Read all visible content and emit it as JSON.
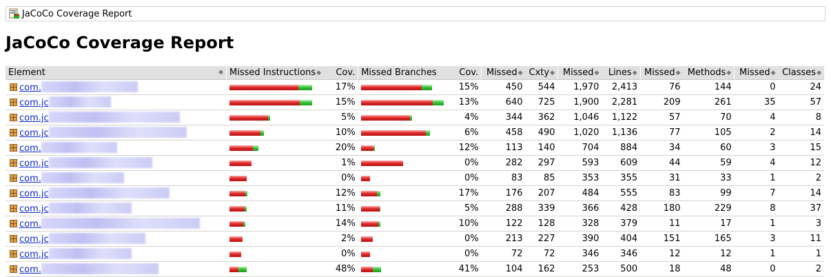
{
  "breadcrumb": {
    "title": "JaCoCo Coverage Report"
  },
  "page": {
    "title": "JaCoCo Coverage Report"
  },
  "table": {
    "headers": [
      "Element",
      "Missed Instructions",
      "Cov.",
      "Missed Branches",
      "Cov.",
      "Missed",
      "Cxty",
      "Missed",
      "Lines",
      "Missed",
      "Methods",
      "Missed",
      "Classes"
    ],
    "rows": [
      {
        "name": "com.",
        "instr_bar": {
          "missed_fraction": 0.83,
          "covered_fraction": 0.17
        },
        "instr_cov": "17%",
        "branch_bar": {
          "missed_fraction": 0.85,
          "covered_fraction": 0.15
        },
        "branch_cov": "15%",
        "missed_cxty": "450",
        "cxty": "544",
        "missed_lines": "1,970",
        "lines": "2,413",
        "missed_methods": "76",
        "methods": "144",
        "missed_classes": "0",
        "classes": "24"
      },
      {
        "name": "com.jc",
        "instr_bar": {
          "missed_fraction": 0.85,
          "covered_fraction": 0.15
        },
        "instr_cov": "15%",
        "branch_bar": {
          "missed_fraction": 0.87,
          "covered_fraction": 0.13
        },
        "branch_cov": "13%",
        "missed_cxty": "640",
        "cxty": "725",
        "missed_lines": "1,900",
        "lines": "2,281",
        "missed_methods": "209",
        "methods": "261",
        "missed_classes": "35",
        "classes": "57"
      },
      {
        "name": "com.jc",
        "instr_bar": {
          "missed_fraction": 0.95,
          "covered_fraction": 0.05
        },
        "instr_cov": "5%",
        "branch_bar": {
          "missed_fraction": 0.96,
          "covered_fraction": 0.04
        },
        "branch_cov": "4%",
        "missed_cxty": "344",
        "cxty": "362",
        "missed_lines": "1,046",
        "lines": "1,122",
        "missed_methods": "57",
        "methods": "70",
        "missed_classes": "4",
        "classes": "8"
      },
      {
        "name": "com.jc",
        "instr_bar": {
          "missed_fraction": 0.9,
          "covered_fraction": 0.1
        },
        "instr_cov": "10%",
        "branch_bar": {
          "missed_fraction": 0.94,
          "covered_fraction": 0.06
        },
        "branch_cov": "6%",
        "missed_cxty": "458",
        "cxty": "490",
        "missed_lines": "1,020",
        "lines": "1,136",
        "missed_methods": "77",
        "methods": "105",
        "missed_classes": "2",
        "classes": "14"
      },
      {
        "name": "com.",
        "instr_bar": {
          "missed_fraction": 0.8,
          "covered_fraction": 0.2
        },
        "instr_cov": "20%",
        "branch_bar": {
          "missed_fraction": 0.88,
          "covered_fraction": 0.12
        },
        "branch_cov": "12%",
        "missed_cxty": "113",
        "cxty": "140",
        "missed_lines": "704",
        "lines": "884",
        "missed_methods": "34",
        "methods": "60",
        "missed_classes": "3",
        "classes": "15"
      },
      {
        "name": "com.jc",
        "instr_bar": {
          "missed_fraction": 0.99,
          "covered_fraction": 0.01
        },
        "instr_cov": "1%",
        "branch_bar": {
          "missed_fraction": 1.0,
          "covered_fraction": 0.0
        },
        "branch_cov": "0%",
        "missed_cxty": "282",
        "cxty": "297",
        "missed_lines": "593",
        "lines": "609",
        "missed_methods": "44",
        "methods": "59",
        "missed_classes": "4",
        "classes": "12"
      },
      {
        "name": "com.",
        "instr_bar": {
          "missed_fraction": 1.0,
          "covered_fraction": 0.0
        },
        "instr_cov": "0%",
        "branch_bar": {
          "missed_fraction": 1.0,
          "covered_fraction": 0.0
        },
        "branch_cov": "0%",
        "missed_cxty": "83",
        "cxty": "85",
        "missed_lines": "353",
        "lines": "355",
        "missed_methods": "31",
        "methods": "33",
        "missed_classes": "1",
        "classes": "2"
      },
      {
        "name": "com.jc",
        "instr_bar": {
          "missed_fraction": 0.88,
          "covered_fraction": 0.12
        },
        "instr_cov": "12%",
        "branch_bar": {
          "missed_fraction": 0.83,
          "covered_fraction": 0.17
        },
        "branch_cov": "17%",
        "missed_cxty": "176",
        "cxty": "207",
        "missed_lines": "484",
        "lines": "555",
        "missed_methods": "83",
        "methods": "99",
        "missed_classes": "7",
        "classes": "14"
      },
      {
        "name": "com.jc",
        "instr_bar": {
          "missed_fraction": 0.89,
          "covered_fraction": 0.11
        },
        "instr_cov": "11%",
        "branch_bar": {
          "missed_fraction": 0.95,
          "covered_fraction": 0.05
        },
        "branch_cov": "5%",
        "missed_cxty": "288",
        "cxty": "339",
        "missed_lines": "366",
        "lines": "428",
        "missed_methods": "180",
        "methods": "229",
        "missed_classes": "8",
        "classes": "37"
      },
      {
        "name": "com.",
        "instr_bar": {
          "missed_fraction": 0.86,
          "covered_fraction": 0.14
        },
        "instr_cov": "14%",
        "branch_bar": {
          "missed_fraction": 0.9,
          "covered_fraction": 0.1
        },
        "branch_cov": "10%",
        "missed_cxty": "122",
        "cxty": "128",
        "missed_lines": "328",
        "lines": "379",
        "missed_methods": "11",
        "methods": "17",
        "missed_classes": "1",
        "classes": "3"
      },
      {
        "name": "com.jc",
        "instr_bar": {
          "missed_fraction": 0.98,
          "covered_fraction": 0.02
        },
        "instr_cov": "2%",
        "branch_bar": {
          "missed_fraction": 1.0,
          "covered_fraction": 0.0
        },
        "branch_cov": "0%",
        "missed_cxty": "213",
        "cxty": "227",
        "missed_lines": "390",
        "lines": "404",
        "missed_methods": "151",
        "methods": "165",
        "missed_classes": "3",
        "classes": "11"
      },
      {
        "name": "com.jc",
        "instr_bar": {
          "missed_fraction": 1.0,
          "covered_fraction": 0.0
        },
        "instr_cov": "0%",
        "branch_bar": {
          "missed_fraction": 1.0,
          "covered_fraction": 0.0
        },
        "branch_cov": "0%",
        "missed_cxty": "72",
        "cxty": "72",
        "missed_lines": "346",
        "lines": "346",
        "missed_methods": "12",
        "methods": "12",
        "missed_classes": "1",
        "classes": "1"
      },
      {
        "name": "com.",
        "instr_bar": {
          "missed_fraction": 0.52,
          "covered_fraction": 0.48
        },
        "instr_cov": "48%",
        "branch_bar": {
          "missed_fraction": 0.59,
          "covered_fraction": 0.41
        },
        "branch_cov": "41%",
        "missed_cxty": "104",
        "cxty": "162",
        "missed_lines": "253",
        "lines": "500",
        "missed_methods": "18",
        "methods": "48",
        "missed_classes": "0",
        "classes": "2"
      }
    ]
  },
  "icons": {
    "report": "report-icon",
    "package": "package-icon",
    "sort": "sort-icon"
  }
}
